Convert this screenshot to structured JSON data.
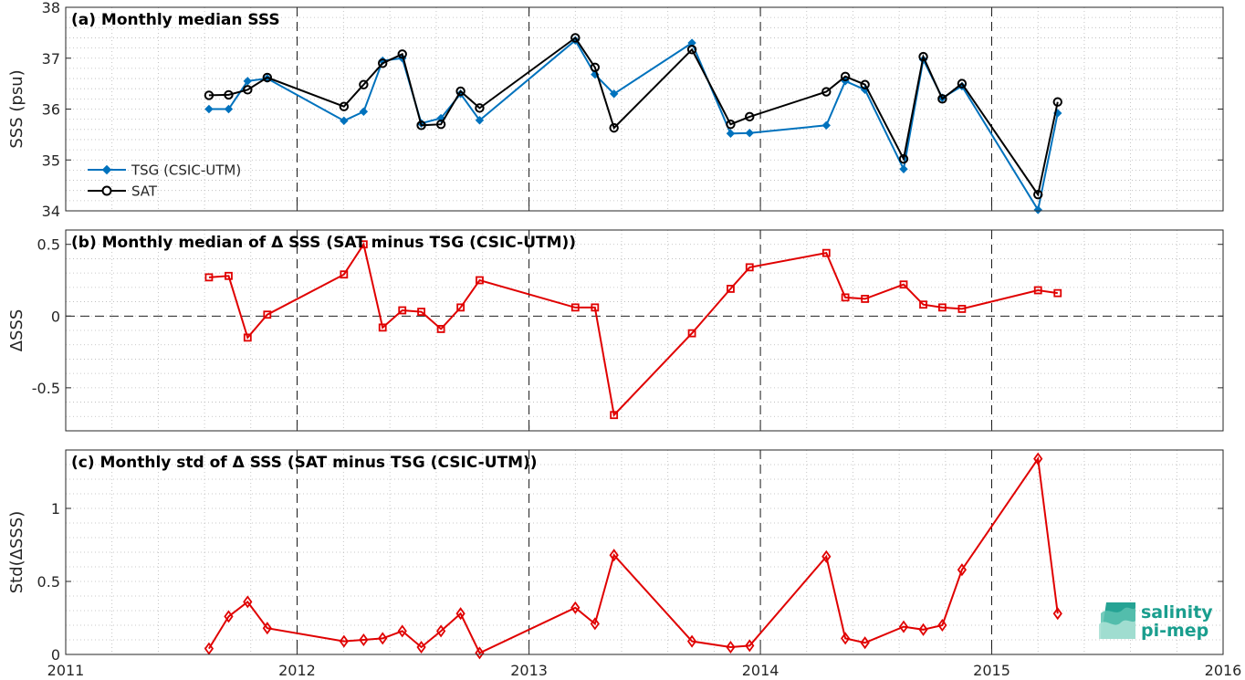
{
  "colors": {
    "tsg": "#0072bd",
    "sat": "#000000",
    "delta": "#e00000",
    "grid": "#b8b8b8",
    "logo": "#1a9e8e"
  },
  "logo": {
    "line1": "salinity",
    "line2": "pi-mep"
  },
  "x_ticks": [
    "2011",
    "2012",
    "2013",
    "2014",
    "2015",
    "2016"
  ],
  "chart_data": [
    {
      "type": "line",
      "title": "(a) Monthly median SSS",
      "xlabel": "",
      "ylabel": "SSS (psu)",
      "xlim": [
        "2011-01-01",
        "2016-01-01"
      ],
      "ylim": [
        34,
        38
      ],
      "yticks": [
        34,
        35,
        36,
        37,
        38
      ],
      "yticklabels": [
        "34",
        "35",
        "36",
        "37",
        "38"
      ],
      "grid": true,
      "legend": "left",
      "series": [
        {
          "name": "TSG (CSIC-UTM)",
          "marker": "diamond-filled",
          "x": [
            "2011-08-15",
            "2011-09-15",
            "2011-10-15",
            "2011-11-15",
            "2012-03-15",
            "2012-04-15",
            "2012-05-15",
            "2012-06-15",
            "2012-07-15",
            "2012-08-15",
            "2012-09-15",
            "2012-10-15",
            "2013-03-15",
            "2013-04-15",
            "2013-05-15",
            "2013-09-15",
            "2013-11-15",
            "2013-12-15",
            "2014-04-15",
            "2014-05-15",
            "2014-06-15",
            "2014-08-15",
            "2014-09-15",
            "2014-10-15",
            "2014-11-15",
            "2015-03-15",
            "2015-04-15"
          ],
          "y": [
            36.0,
            36.0,
            36.55,
            36.6,
            35.77,
            35.95,
            36.95,
            37.0,
            35.72,
            35.82,
            36.3,
            35.78,
            37.35,
            36.68,
            36.3,
            37.3,
            35.52,
            35.53,
            35.68,
            36.55,
            36.38,
            34.82,
            36.97,
            36.22,
            36.45,
            34.02,
            35.92
          ]
        },
        {
          "name": "SAT",
          "marker": "circle-open",
          "x": [
            "2011-08-15",
            "2011-09-15",
            "2011-10-15",
            "2011-11-15",
            "2012-03-15",
            "2012-04-15",
            "2012-05-15",
            "2012-06-15",
            "2012-07-15",
            "2012-08-15",
            "2012-09-15",
            "2012-10-15",
            "2013-03-15",
            "2013-04-15",
            "2013-05-15",
            "2013-09-15",
            "2013-11-15",
            "2013-12-15",
            "2014-04-15",
            "2014-05-15",
            "2014-06-15",
            "2014-08-15",
            "2014-09-15",
            "2014-10-15",
            "2014-11-15",
            "2015-03-15",
            "2015-04-15"
          ],
          "y": [
            36.27,
            36.28,
            36.38,
            36.62,
            36.05,
            36.48,
            36.9,
            37.08,
            35.68,
            35.7,
            36.35,
            36.02,
            37.4,
            36.82,
            35.63,
            37.17,
            35.7,
            35.85,
            36.34,
            36.64,
            36.48,
            35.02,
            37.03,
            36.2,
            36.5,
            34.32,
            36.14
          ]
        }
      ]
    },
    {
      "type": "line",
      "title": "(b) Monthly median of Δ SSS (SAT minus TSG (CSIC-UTM))",
      "xlabel": "",
      "ylabel": "ΔSSS",
      "xlim": [
        "2011-01-01",
        "2016-01-01"
      ],
      "ylim": [
        -0.8,
        0.6
      ],
      "yticks": [
        -0.5,
        0,
        0.5
      ],
      "yticklabels": [
        "-0.5",
        "0",
        "0.5"
      ],
      "grid": true,
      "zero_line": true,
      "series": [
        {
          "name": "",
          "marker": "square-open",
          "x": [
            "2011-08-15",
            "2011-09-15",
            "2011-10-15",
            "2011-11-15",
            "2012-03-15",
            "2012-04-15",
            "2012-05-15",
            "2012-06-15",
            "2012-07-15",
            "2012-08-15",
            "2012-09-15",
            "2012-10-15",
            "2013-03-15",
            "2013-04-15",
            "2013-05-15",
            "2013-09-15",
            "2013-11-15",
            "2013-12-15",
            "2014-04-15",
            "2014-05-15",
            "2014-06-15",
            "2014-08-15",
            "2014-09-15",
            "2014-10-15",
            "2014-11-15",
            "2015-03-15",
            "2015-04-15"
          ],
          "y": [
            0.27,
            0.28,
            -0.15,
            0.01,
            0.29,
            0.5,
            -0.08,
            0.04,
            0.03,
            -0.09,
            0.06,
            0.25,
            0.06,
            0.06,
            -0.69,
            -0.12,
            0.19,
            0.34,
            0.44,
            0.13,
            0.12,
            0.22,
            0.08,
            0.06,
            0.05,
            0.18,
            0.16
          ]
        }
      ]
    },
    {
      "type": "line",
      "title": "(c) Monthly std of Δ SSS (SAT minus TSG (CSIC-UTM))",
      "xlabel": "",
      "ylabel": "Std(ΔSSS)",
      "xlim": [
        "2011-01-01",
        "2016-01-01"
      ],
      "ylim": [
        0,
        1.4
      ],
      "yticks": [
        0,
        0.5,
        1
      ],
      "yticklabels": [
        "0",
        "0.5",
        "1"
      ],
      "grid": true,
      "series": [
        {
          "name": "",
          "marker": "diamond-open",
          "x": [
            "2011-08-15",
            "2011-09-15",
            "2011-10-15",
            "2011-11-15",
            "2012-03-15",
            "2012-04-15",
            "2012-05-15",
            "2012-06-15",
            "2012-07-15",
            "2012-08-15",
            "2012-09-15",
            "2012-10-15",
            "2013-03-15",
            "2013-04-15",
            "2013-05-15",
            "2013-09-15",
            "2013-11-15",
            "2013-12-15",
            "2014-04-15",
            "2014-05-15",
            "2014-06-15",
            "2014-08-15",
            "2014-09-15",
            "2014-10-15",
            "2014-11-15",
            "2015-03-15",
            "2015-04-15"
          ],
          "y": [
            0.04,
            0.26,
            0.36,
            0.18,
            0.09,
            0.1,
            0.11,
            0.16,
            0.05,
            0.16,
            0.28,
            0.01,
            0.32,
            0.21,
            0.68,
            0.09,
            0.05,
            0.06,
            0.67,
            0.11,
            0.08,
            0.19,
            0.17,
            0.2,
            0.58,
            1.34,
            0.28
          ]
        }
      ]
    }
  ]
}
